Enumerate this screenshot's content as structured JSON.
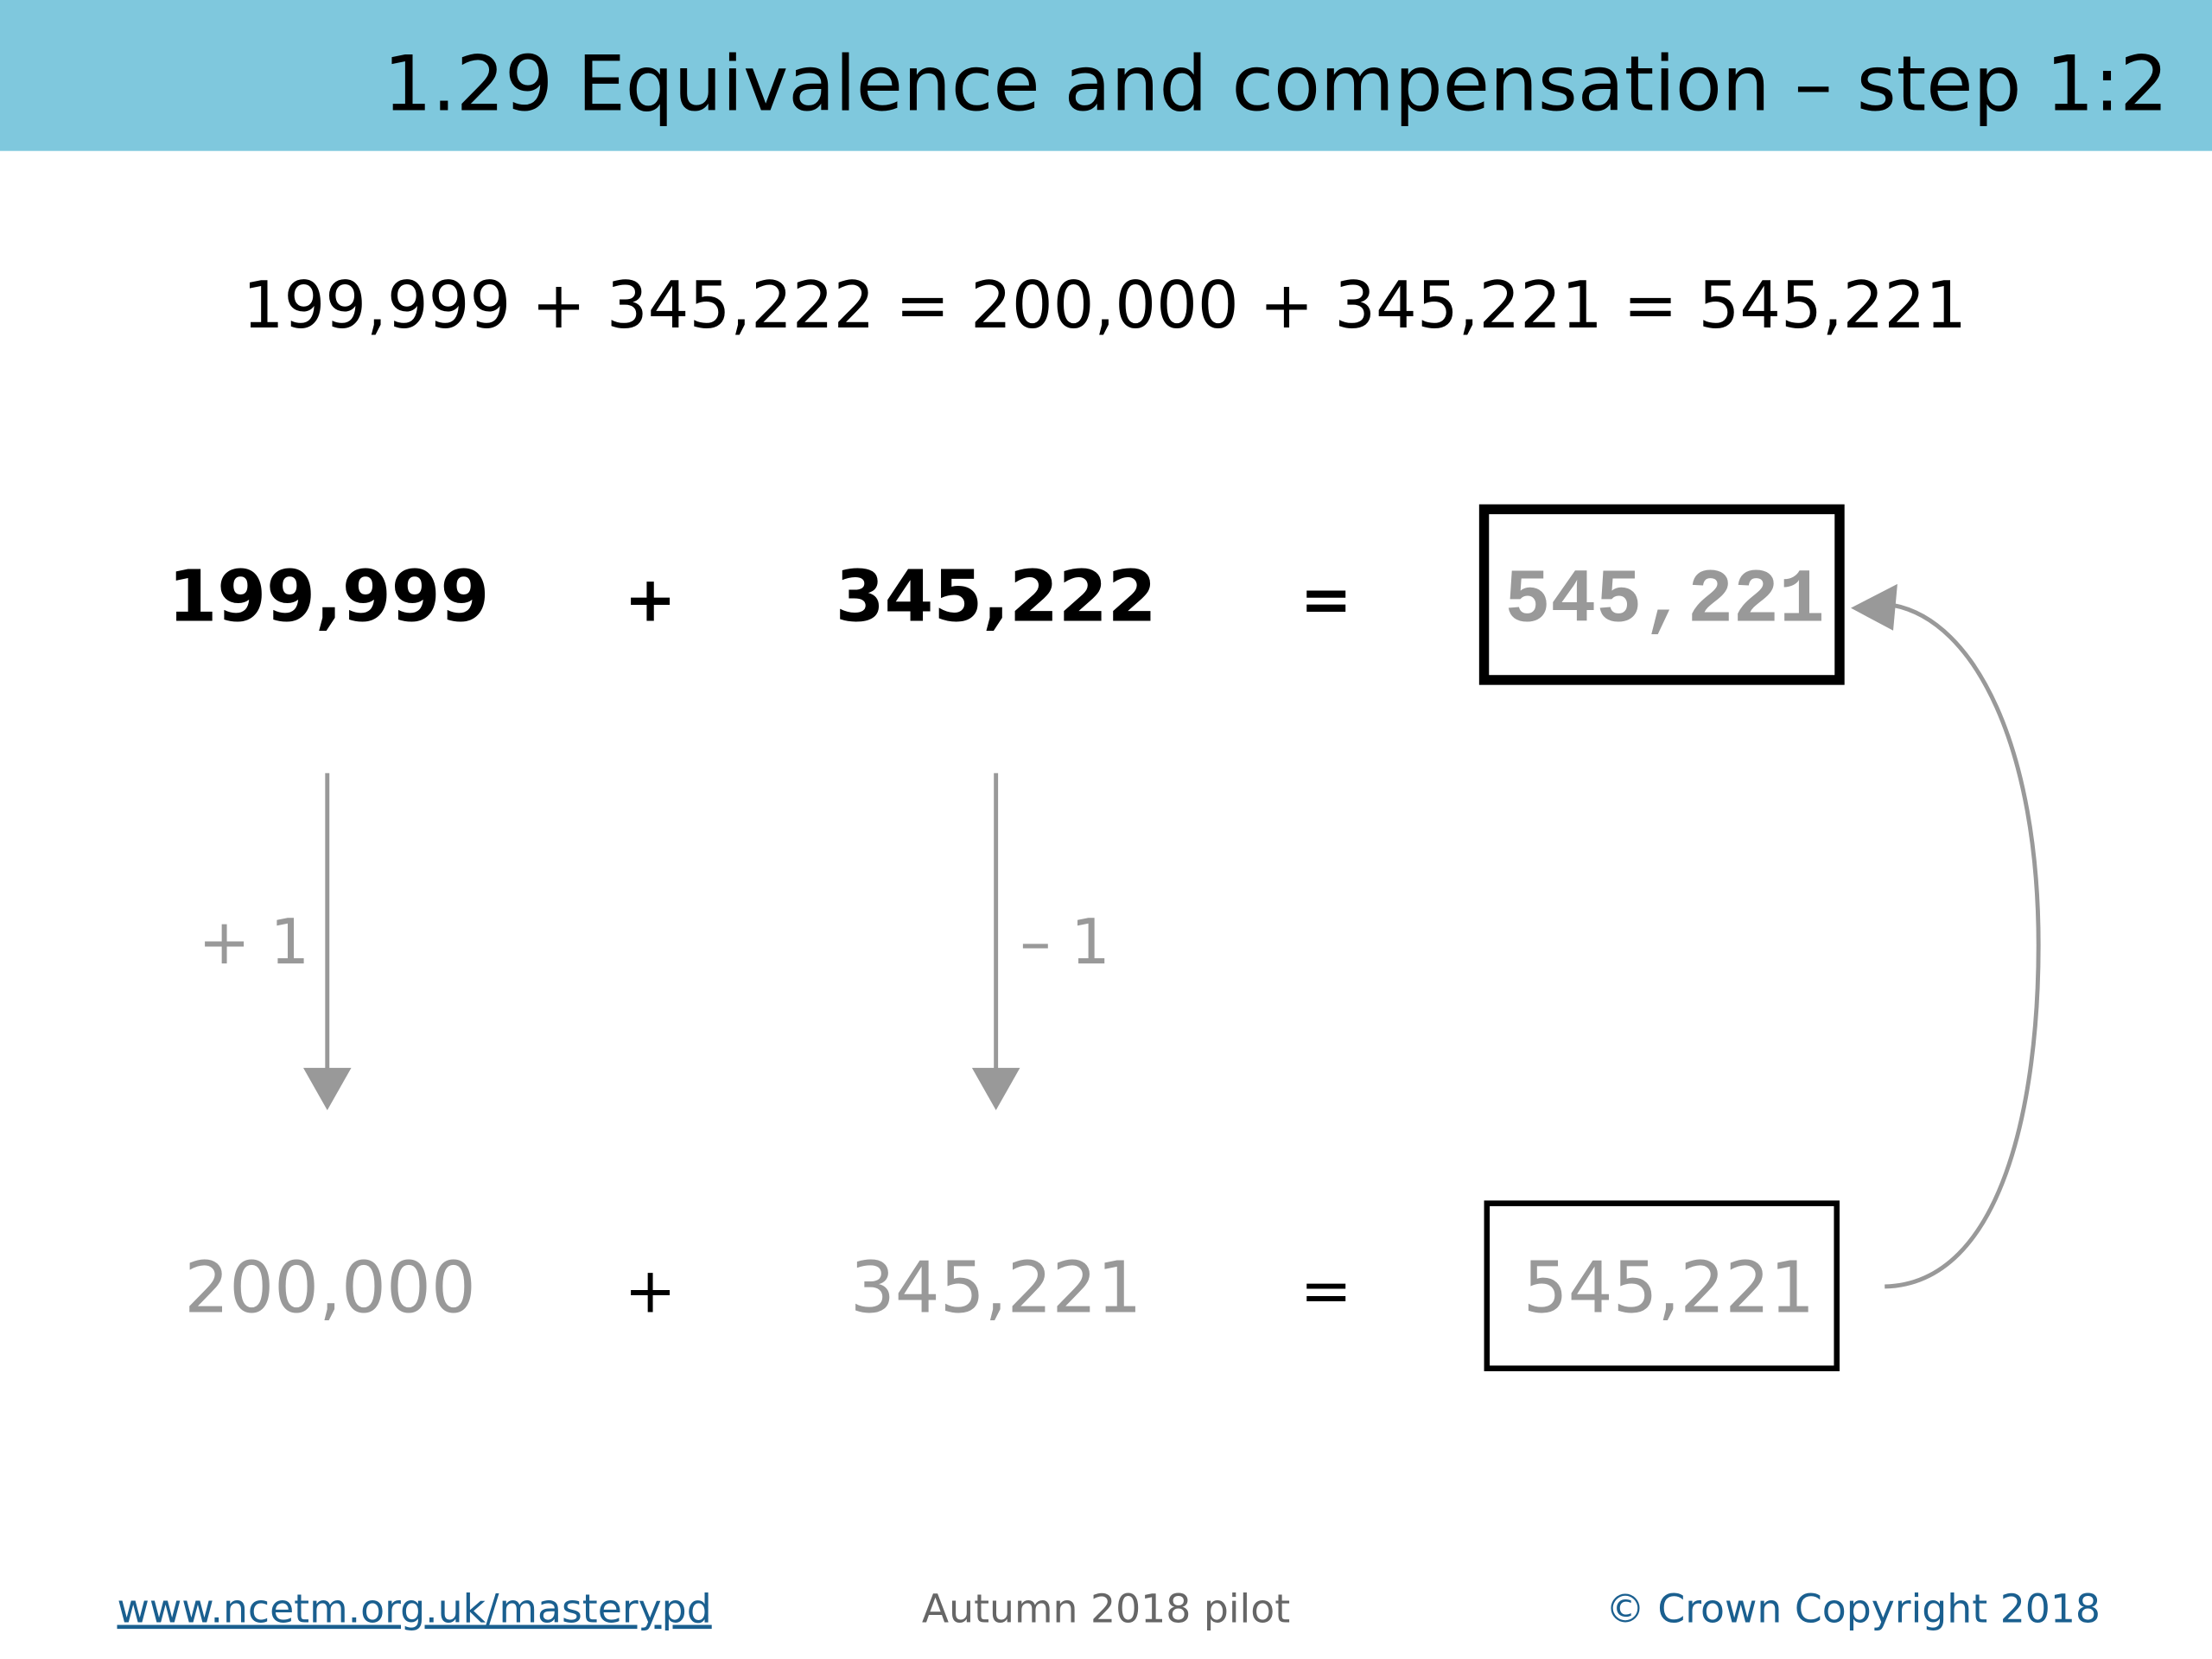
{
  "header": {
    "title": "1.29 Equivalence and compensation – step 1:2"
  },
  "equation": "199,999 + 345,222 = 200,000 + 345,221 = 545,221",
  "diagram": {
    "top_row": [
      "199,999",
      "+",
      "345,222",
      "=",
      "545,221"
    ],
    "arrow_labels": [
      "+ 1",
      "– 1"
    ],
    "bottom_row": [
      "200,000",
      "+",
      "345,221",
      "=",
      "545,221"
    ]
  },
  "footer": {
    "link": "www.ncetm.org.uk/masterypd",
    "center": "Autumn 2018 pilot",
    "right": "© Crown Copyright 2018"
  }
}
